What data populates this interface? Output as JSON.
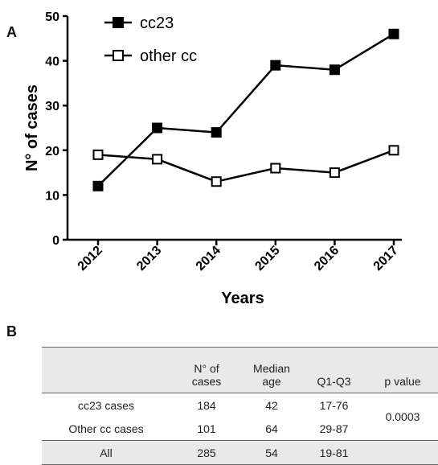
{
  "panel_a_label": "A",
  "panel_b_label": "B",
  "chart_data": {
    "type": "line",
    "xlabel": "Years",
    "ylabel": "N° of cases",
    "categories": [
      "2012",
      "2013",
      "2014",
      "2015",
      "2016",
      "2017"
    ],
    "ylim": [
      0,
      50
    ],
    "yticks": [
      0,
      10,
      20,
      30,
      40,
      50
    ],
    "grid": false,
    "legend": "top-left",
    "series": [
      {
        "name": "cc23",
        "marker": "filled-square",
        "color": "#000000",
        "values": [
          12,
          25,
          24,
          39,
          38,
          46
        ]
      },
      {
        "name": "other cc",
        "marker": "open-square",
        "color": "#000000",
        "values": [
          19,
          18,
          13,
          16,
          15,
          20
        ]
      }
    ]
  },
  "table": {
    "headers": [
      {
        "line1": "",
        "line2": ""
      },
      {
        "line1": "N° of",
        "line2": "cases"
      },
      {
        "line1": "Median",
        "line2": "age"
      },
      {
        "line1": "",
        "line2": "Q1-Q3"
      },
      {
        "line1": "",
        "line2": "p value"
      }
    ],
    "rows": [
      {
        "group": "cc23 cases",
        "n": "184",
        "median": "42",
        "q": "17-76"
      },
      {
        "group": "Other cc cases",
        "n": "101",
        "median": "64",
        "q": "29-87"
      }
    ],
    "p_value": "0.0003",
    "all_row": {
      "group": "All",
      "n": "285",
      "median": "54",
      "q": "19-81"
    }
  }
}
